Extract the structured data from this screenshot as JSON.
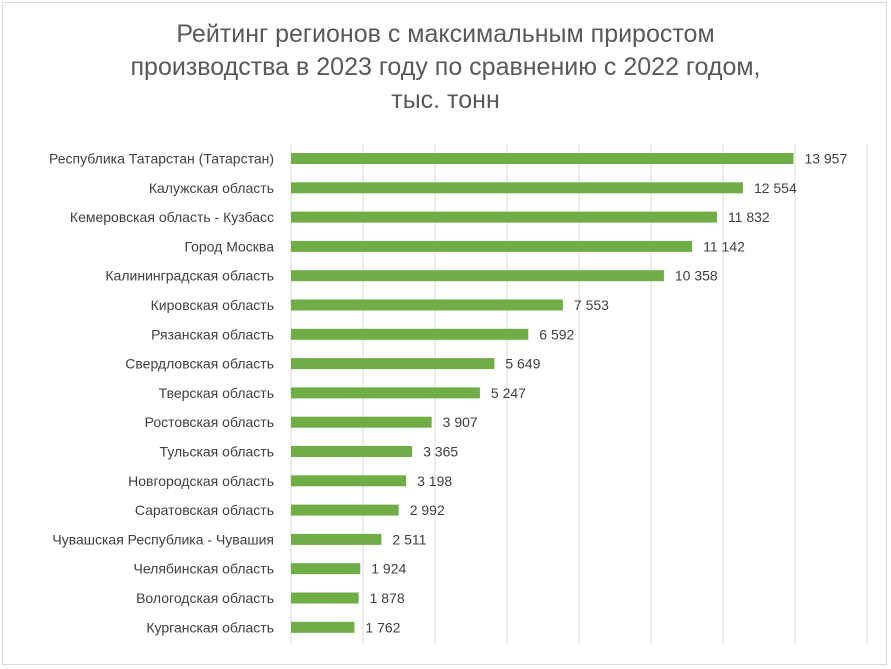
{
  "chart_data": {
    "type": "bar",
    "orientation": "horizontal",
    "title_lines": [
      "Рейтинг регионов с максимальным приростом",
      "производства в 2023 году по сравнению с 2022 годом,",
      "тыс. тонн"
    ],
    "categories": [
      "Республика Татарстан (Татарстан)",
      "Калужская область",
      "Кемеровская область - Кузбасс",
      "Город Москва",
      "Калининградская область",
      "Кировская область",
      "Рязанская область",
      "Свердловская область",
      "Тверская область",
      "Ростовская область",
      "Тульская область",
      "Новгородская область",
      "Саратовская область",
      "Чувашская Республика - Чувашия",
      "Челябинская область",
      "Вологодская область",
      "Курганская область"
    ],
    "values": [
      13957,
      12554,
      11832,
      11142,
      10358,
      7553,
      6592,
      5649,
      5247,
      3907,
      3365,
      3198,
      2992,
      2511,
      1924,
      1878,
      1762
    ],
    "value_labels": [
      "13 957",
      "12 554",
      "11 832",
      "11 142",
      "10 358",
      "7 553",
      "6 592",
      "5 649",
      "5 247",
      "3 907",
      "3 365",
      "3 198",
      "2 992",
      "2 511",
      "1 924",
      "1 878",
      "1 762"
    ],
    "xlim": [
      0,
      16000
    ],
    "x_gridline_step": 2000,
    "grid": true,
    "bar_color": "#70ad47",
    "gridline_color": "#d9d9d9",
    "legend": "none"
  }
}
